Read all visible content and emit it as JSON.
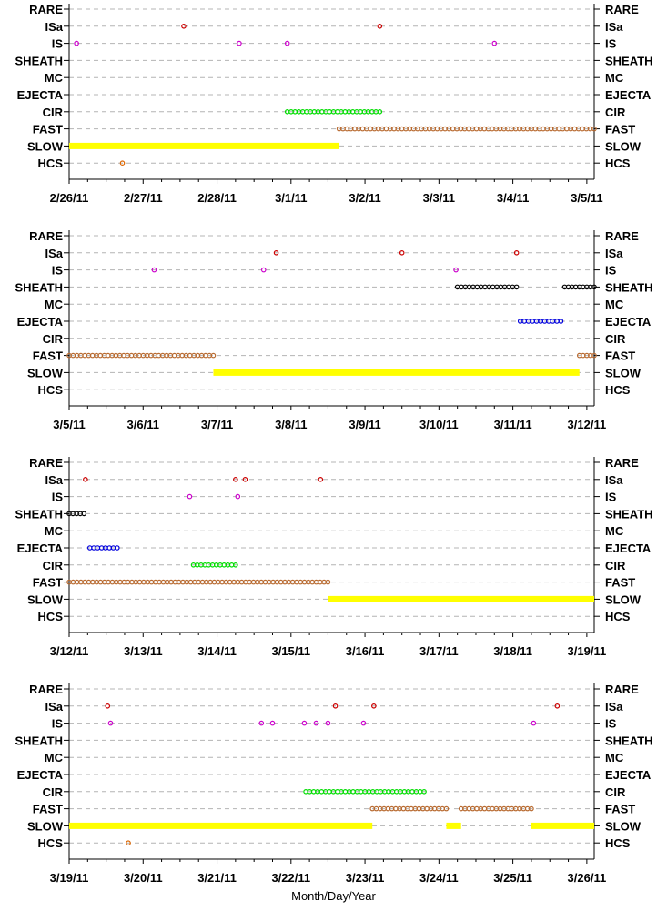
{
  "chart_data": [
    {
      "type": "scatter",
      "categories": [
        "RARE",
        "ISa",
        "IS",
        "SHEATH",
        "MC",
        "EJECTA",
        "CIR",
        "FAST",
        "SLOW",
        "HCS"
      ],
      "tick_labels": [
        "2/26/11",
        "2/27/11",
        "2/28/11",
        "3/1/11",
        "3/2/11",
        "3/3/11",
        "3/4/11",
        "3/5/11"
      ],
      "xlim": [
        0,
        7.1
      ],
      "series": [
        {
          "category": "ISa",
          "color": "#cc0000",
          "kind": "points",
          "x": [
            1.55,
            4.2
          ]
        },
        {
          "category": "IS",
          "color": "#cc00cc",
          "kind": "points",
          "x": [
            0.1,
            2.3,
            2.95,
            5.75
          ]
        },
        {
          "category": "CIR",
          "color": "#00dd00",
          "kind": "runs",
          "x": [
            [
              2.95,
              4.2
            ]
          ]
        },
        {
          "category": "FAST",
          "color": "#b86a30",
          "kind": "runs",
          "x": [
            [
              3.65,
              7.1
            ]
          ]
        },
        {
          "category": "SLOW",
          "color": "#ffff00",
          "kind": "band",
          "x": [
            [
              0.0,
              3.65
            ]
          ]
        },
        {
          "category": "HCS",
          "color": "#dd6600",
          "kind": "points",
          "x": [
            0.72
          ]
        }
      ]
    },
    {
      "type": "scatter",
      "categories": [
        "RARE",
        "ISa",
        "IS",
        "SHEATH",
        "MC",
        "EJECTA",
        "CIR",
        "FAST",
        "SLOW",
        "HCS"
      ],
      "tick_labels": [
        "3/5/11",
        "3/6/11",
        "3/7/11",
        "3/8/11",
        "3/9/11",
        "3/10/11",
        "3/11/11",
        "3/12/11"
      ],
      "xlim": [
        0,
        7.1
      ],
      "series": [
        {
          "category": "ISa",
          "color": "#cc0000",
          "kind": "points",
          "x": [
            2.8,
            4.5,
            6.05
          ]
        },
        {
          "category": "IS",
          "color": "#cc00cc",
          "kind": "points",
          "x": [
            1.15,
            2.63,
            5.23
          ]
        },
        {
          "category": "SHEATH",
          "color": "#000000",
          "kind": "runs",
          "x": [
            [
              5.25,
              6.05
            ],
            [
              6.7,
              7.1
            ]
          ]
        },
        {
          "category": "EJECTA",
          "color": "#0000dd",
          "kind": "runs",
          "x": [
            [
              6.1,
              6.65
            ]
          ]
        },
        {
          "category": "FAST",
          "color": "#b86a30",
          "kind": "runs",
          "x": [
            [
              0.0,
              1.95
            ],
            [
              6.9,
              7.1
            ]
          ]
        },
        {
          "category": "SLOW",
          "color": "#ffff00",
          "kind": "band",
          "x": [
            [
              1.95,
              6.9
            ]
          ]
        }
      ]
    },
    {
      "type": "scatter",
      "categories": [
        "RARE",
        "ISa",
        "IS",
        "SHEATH",
        "MC",
        "EJECTA",
        "CIR",
        "FAST",
        "SLOW",
        "HCS"
      ],
      "tick_labels": [
        "3/12/11",
        "3/13/11",
        "3/14/11",
        "3/15/11",
        "3/16/11",
        "3/17/11",
        "3/18/11",
        "3/19/11"
      ],
      "xlim": [
        0,
        7.1
      ],
      "series": [
        {
          "category": "ISa",
          "color": "#cc0000",
          "kind": "points",
          "x": [
            0.22,
            2.25,
            2.38,
            3.4
          ]
        },
        {
          "category": "IS",
          "color": "#cc00cc",
          "kind": "points",
          "x": [
            1.63,
            2.28
          ]
        },
        {
          "category": "SHEATH",
          "color": "#000000",
          "kind": "runs",
          "x": [
            [
              0.0,
              0.2
            ]
          ]
        },
        {
          "category": "EJECTA",
          "color": "#0000dd",
          "kind": "runs",
          "x": [
            [
              0.28,
              0.65
            ]
          ]
        },
        {
          "category": "CIR",
          "color": "#00dd00",
          "kind": "runs",
          "x": [
            [
              1.68,
              2.25
            ]
          ]
        },
        {
          "category": "FAST",
          "color": "#b86a30",
          "kind": "runs",
          "x": [
            [
              0.0,
              3.5
            ]
          ]
        },
        {
          "category": "SLOW",
          "color": "#ffff00",
          "kind": "band",
          "x": [
            [
              3.5,
              7.1
            ]
          ]
        }
      ]
    },
    {
      "type": "scatter",
      "categories": [
        "RARE",
        "ISa",
        "IS",
        "SHEATH",
        "MC",
        "EJECTA",
        "CIR",
        "FAST",
        "SLOW",
        "HCS"
      ],
      "tick_labels": [
        "3/19/11",
        "3/20/11",
        "3/21/11",
        "3/22/11",
        "3/23/11",
        "3/24/11",
        "3/25/11",
        "3/26/11"
      ],
      "xlim": [
        0,
        7.1
      ],
      "series": [
        {
          "category": "ISa",
          "color": "#cc0000",
          "kind": "points",
          "x": [
            0.52,
            3.6,
            4.12,
            6.6
          ]
        },
        {
          "category": "IS",
          "color": "#cc00cc",
          "kind": "points",
          "x": [
            0.56,
            2.6,
            2.75,
            3.18,
            3.34,
            3.5,
            3.98,
            6.28
          ]
        },
        {
          "category": "CIR",
          "color": "#00dd00",
          "kind": "runs",
          "x": [
            [
              3.2,
              4.8
            ]
          ]
        },
        {
          "category": "FAST",
          "color": "#b86a30",
          "kind": "runs",
          "x": [
            [
              4.1,
              5.1
            ],
            [
              5.3,
              6.25
            ]
          ]
        },
        {
          "category": "SLOW",
          "color": "#ffff00",
          "kind": "band",
          "x": [
            [
              0.0,
              4.1
            ],
            [
              5.1,
              5.3
            ],
            [
              6.25,
              7.1
            ]
          ]
        },
        {
          "category": "HCS",
          "color": "#dd6600",
          "kind": "points",
          "x": [
            0.8
          ]
        }
      ]
    }
  ],
  "xlabel": "Month/Day/Year"
}
